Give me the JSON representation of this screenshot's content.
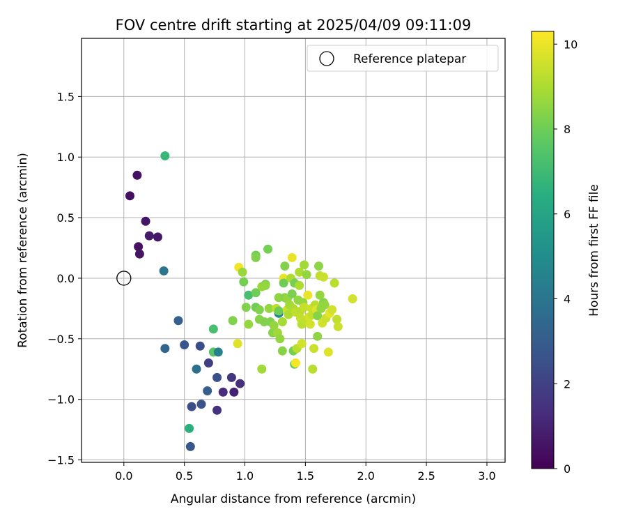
{
  "chart_data": {
    "type": "scatter",
    "title": "FOV centre drift starting at 2025/04/09 09:11:09",
    "xlabel": "Angular distance from reference (arcmin)",
    "ylabel": "Rotation from reference (arcmin)",
    "xlim": [
      -0.35,
      3.15
    ],
    "ylim": [
      -1.52,
      1.98
    ],
    "xticks": [
      0.0,
      0.5,
      1.0,
      1.5,
      2.0,
      2.5,
      3.0
    ],
    "yticks": [
      -1.5,
      -1.0,
      -0.5,
      0.0,
      0.5,
      1.0,
      1.5
    ],
    "xtick_labels": [
      "0.0",
      "0.5",
      "1.0",
      "1.5",
      "2.0",
      "2.5",
      "3.0"
    ],
    "ytick_labels": [
      "−1.5",
      "−1.0",
      "−0.5",
      "0.0",
      "0.5",
      "1.0",
      "1.5"
    ],
    "grid": true,
    "legend": {
      "placement": "upper right",
      "entries": [
        {
          "label": "Reference platepar",
          "marker": "open-circle",
          "x": 0.0,
          "y": 0.0
        }
      ]
    },
    "colorbar": {
      "label": "Hours from first FF file",
      "colormap": "viridis",
      "range": [
        0,
        10.3
      ],
      "ticks": [
        0,
        2,
        4,
        6,
        8,
        10
      ],
      "tick_labels": [
        "0",
        "2",
        "4",
        "6",
        "8",
        "10"
      ]
    },
    "points": [
      [
        0.11,
        0.85,
        0.5
      ],
      [
        0.05,
        0.68,
        0.4
      ],
      [
        0.18,
        0.47,
        0.6
      ],
      [
        0.21,
        0.35,
        0.7
      ],
      [
        0.28,
        0.34,
        0.6
      ],
      [
        0.12,
        0.26,
        0.5
      ],
      [
        0.13,
        0.2,
        0.6
      ],
      [
        0.34,
        1.01,
        6.8
      ],
      [
        0.33,
        0.06,
        4.0
      ],
      [
        0.34,
        -0.58,
        3.4
      ],
      [
        0.45,
        -0.35,
        3.2
      ],
      [
        0.5,
        -0.55,
        2.7
      ],
      [
        0.63,
        -0.56,
        2.4
      ],
      [
        0.6,
        -0.75,
        3.8
      ],
      [
        0.7,
        -0.7,
        1.9
      ],
      [
        0.56,
        -1.06,
        2.4
      ],
      [
        0.64,
        -1.04,
        2.6
      ],
      [
        0.69,
        -0.93,
        3.0
      ],
      [
        0.55,
        -1.39,
        2.8
      ],
      [
        0.54,
        -1.24,
        6.5
      ],
      [
        0.77,
        -0.82,
        2.5
      ],
      [
        0.77,
        -1.09,
        1.5
      ],
      [
        0.82,
        -0.94,
        1.3
      ],
      [
        0.89,
        -0.82,
        1.6
      ],
      [
        0.91,
        -0.94,
        1.0
      ],
      [
        0.96,
        -0.87,
        1.4
      ],
      [
        0.74,
        -0.42,
        7.2
      ],
      [
        0.74,
        -0.61,
        7.5
      ],
      [
        0.78,
        -0.61,
        4.5
      ],
      [
        0.9,
        -0.35,
        8.3
      ],
      [
        0.94,
        -0.54,
        9.8
      ],
      [
        0.95,
        0.09,
        10.1
      ],
      [
        0.98,
        0.05,
        8.7
      ],
      [
        0.99,
        -0.03,
        8.1
      ],
      [
        1.01,
        -0.24,
        8.3
      ],
      [
        1.03,
        -0.14,
        7.2
      ],
      [
        1.03,
        -0.38,
        8.6
      ],
      [
        1.09,
        0.19,
        8.0
      ],
      [
        1.09,
        0.17,
        8.3
      ],
      [
        1.09,
        -0.12,
        8.0
      ],
      [
        1.09,
        -0.24,
        8.0
      ],
      [
        1.12,
        -0.26,
        8.3
      ],
      [
        1.12,
        -0.34,
        8.4
      ],
      [
        1.14,
        -0.07,
        8.7
      ],
      [
        1.14,
        -0.75,
        8.8
      ],
      [
        1.16,
        -0.36,
        8.3
      ],
      [
        1.17,
        -0.05,
        8.1
      ],
      [
        1.17,
        -0.06,
        8.6
      ],
      [
        1.19,
        0.24,
        8.1
      ],
      [
        1.2,
        -0.25,
        8.6
      ],
      [
        1.21,
        -0.36,
        8.3
      ],
      [
        1.23,
        -0.45,
        8.4
      ],
      [
        1.24,
        -0.39,
        8.6
      ],
      [
        1.26,
        -0.25,
        9.3
      ],
      [
        1.27,
        -0.45,
        8.8
      ],
      [
        1.28,
        -0.16,
        8.5
      ],
      [
        1.28,
        -0.29,
        4.8
      ],
      [
        1.28,
        -0.27,
        8.0
      ],
      [
        1.29,
        -0.5,
        8.6
      ],
      [
        1.31,
        -0.36,
        8.9
      ],
      [
        1.31,
        -0.6,
        8.4
      ],
      [
        1.32,
        0.0,
        10.0
      ],
      [
        1.32,
        -0.04,
        8.0
      ],
      [
        1.33,
        0.1,
        8.3
      ],
      [
        1.33,
        -0.16,
        8.4
      ],
      [
        1.35,
        -0.17,
        8.6
      ],
      [
        1.35,
        -0.26,
        9.5
      ],
      [
        1.36,
        -0.3,
        9.0
      ],
      [
        1.37,
        -0.22,
        8.8
      ],
      [
        1.38,
        0.0,
        9.0
      ],
      [
        1.39,
        0.17,
        10.0
      ],
      [
        1.39,
        -0.13,
        8.2
      ],
      [
        1.4,
        -0.25,
        9.0
      ],
      [
        1.4,
        -0.6,
        8.1
      ],
      [
        1.41,
        -0.04,
        8.1
      ],
      [
        1.41,
        -0.71,
        7.8
      ],
      [
        1.42,
        -0.28,
        9.3
      ],
      [
        1.42,
        -0.7,
        10.2
      ],
      [
        1.43,
        -0.58,
        9.2
      ],
      [
        1.44,
        -0.18,
        8.6
      ],
      [
        1.45,
        0.05,
        9.0
      ],
      [
        1.45,
        -0.06,
        9.0
      ],
      [
        1.46,
        -0.27,
        9.2
      ],
      [
        1.46,
        -0.33,
        9.4
      ],
      [
        1.47,
        -0.38,
        9.2
      ],
      [
        1.47,
        -0.54,
        9.6
      ],
      [
        1.48,
        -0.2,
        8.6
      ],
      [
        1.49,
        0.11,
        8.8
      ],
      [
        1.49,
        -0.24,
        9.4
      ],
      [
        1.5,
        -0.36,
        9.3
      ],
      [
        1.51,
        0.03,
        8.6
      ],
      [
        1.52,
        -0.14,
        10.0
      ],
      [
        1.53,
        -0.32,
        9.6
      ],
      [
        1.54,
        -0.38,
        9.6
      ],
      [
        1.55,
        -0.25,
        9.5
      ],
      [
        1.56,
        -0.3,
        9.3
      ],
      [
        1.56,
        -0.75,
        9.2
      ],
      [
        1.57,
        -0.58,
        9.5
      ],
      [
        1.58,
        -0.22,
        9.2
      ],
      [
        1.59,
        -0.26,
        9.8
      ],
      [
        1.6,
        -0.31,
        8.4
      ],
      [
        1.6,
        -0.48,
        8.5
      ],
      [
        1.61,
        0.1,
        8.5
      ],
      [
        1.62,
        -0.14,
        8.6
      ],
      [
        1.62,
        0.02,
        9.3
      ],
      [
        1.63,
        -0.25,
        8.6
      ],
      [
        1.64,
        -0.37,
        9.6
      ],
      [
        1.65,
        0.01,
        9.5
      ],
      [
        1.65,
        -0.2,
        8.4
      ],
      [
        1.66,
        -0.22,
        8.6
      ],
      [
        1.67,
        -0.33,
        9.5
      ],
      [
        1.69,
        -0.61,
        9.8
      ],
      [
        1.7,
        -0.29,
        9.9
      ],
      [
        1.72,
        -0.26,
        9.6
      ],
      [
        1.74,
        -0.04,
        9.2
      ],
      [
        1.76,
        -0.34,
        9.3
      ],
      [
        1.77,
        -0.4,
        9.5
      ],
      [
        1.89,
        -0.17,
        9.6
      ]
    ]
  }
}
